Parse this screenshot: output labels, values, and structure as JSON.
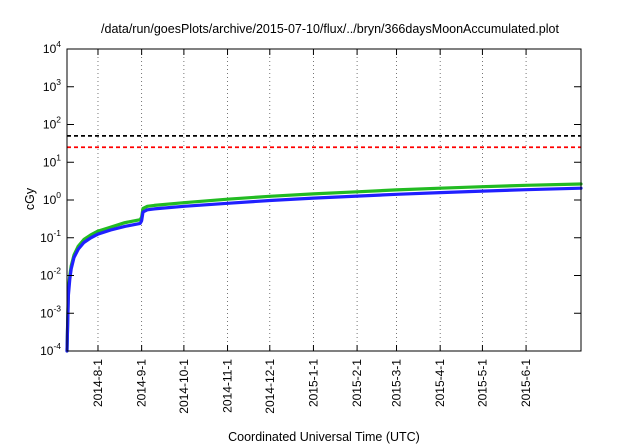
{
  "chart_data": {
    "type": "line",
    "title": "/data/run/goesPlots/archive/2015-07-10/flux/../bryn/366daysMoonAccumulated.plot",
    "xlabel": "Coordinated Universal Time (UTC)",
    "ylabel": "cGy",
    "x_range": [
      "2014-07-10",
      "2015-07-10"
    ],
    "y_range": [
      0.0001,
      10000
    ],
    "y_scale": "log",
    "x_ticks": [
      {
        "date": "2014-08-01",
        "label": "2014-8-1"
      },
      {
        "date": "2014-09-01",
        "label": "2014-9-1"
      },
      {
        "date": "2014-10-01",
        "label": "2014-10-1"
      },
      {
        "date": "2014-11-01",
        "label": "2014-11-1"
      },
      {
        "date": "2014-12-01",
        "label": "2014-12-1"
      },
      {
        "date": "2015-01-01",
        "label": "2015-1-1"
      },
      {
        "date": "2015-02-01",
        "label": "2015-2-1"
      },
      {
        "date": "2015-03-01",
        "label": "2015-3-1"
      },
      {
        "date": "2015-04-01",
        "label": "2015-4-1"
      },
      {
        "date": "2015-05-01",
        "label": "2015-5-1"
      },
      {
        "date": "2015-06-01",
        "label": "2015-6-1"
      }
    ],
    "y_ticks": [
      {
        "value": 0.0001,
        "base": "10",
        "exp": "-4"
      },
      {
        "value": 0.001,
        "base": "10",
        "exp": "-3"
      },
      {
        "value": 0.01,
        "base": "10",
        "exp": "-2"
      },
      {
        "value": 0.1,
        "base": "10",
        "exp": "-1"
      },
      {
        "value": 1,
        "base": "10",
        "exp": "0"
      },
      {
        "value": 10,
        "base": "10",
        "exp": "1"
      },
      {
        "value": 100,
        "base": "10",
        "exp": "2"
      },
      {
        "value": 1000,
        "base": "10",
        "exp": "3"
      },
      {
        "value": 10000,
        "base": "10",
        "exp": "4"
      }
    ],
    "grid": "vertical dotted at x ticks",
    "legend": "none",
    "reference_lines": [
      {
        "y": 50,
        "color": "#000000",
        "style": "dashed"
      },
      {
        "y": 25,
        "color": "#ff0000",
        "style": "dashed"
      }
    ],
    "series": [
      {
        "color": "#22bb22",
        "points": [
          {
            "x": "2014-07-10",
            "y": 0.0001
          },
          {
            "x": "2014-07-11",
            "y": 0.004
          },
          {
            "x": "2014-07-12",
            "y": 0.01
          },
          {
            "x": "2014-07-13",
            "y": 0.018
          },
          {
            "x": "2014-07-15",
            "y": 0.035
          },
          {
            "x": "2014-07-18",
            "y": 0.06
          },
          {
            "x": "2014-07-22",
            "y": 0.09
          },
          {
            "x": "2014-07-27",
            "y": 0.12
          },
          {
            "x": "2014-08-01",
            "y": 0.15
          },
          {
            "x": "2014-08-10",
            "y": 0.19
          },
          {
            "x": "2014-08-20",
            "y": 0.25
          },
          {
            "x": "2014-08-31",
            "y": 0.3
          },
          {
            "x": "2014-09-01",
            "y": 0.35
          },
          {
            "x": "2014-09-02",
            "y": 0.6
          },
          {
            "x": "2014-09-05",
            "y": 0.68
          },
          {
            "x": "2014-09-10",
            "y": 0.72
          },
          {
            "x": "2014-10-01",
            "y": 0.85
          },
          {
            "x": "2014-11-01",
            "y": 1.05
          },
          {
            "x": "2014-12-01",
            "y": 1.25
          },
          {
            "x": "2015-01-01",
            "y": 1.45
          },
          {
            "x": "2015-02-01",
            "y": 1.65
          },
          {
            "x": "2015-03-01",
            "y": 1.85
          },
          {
            "x": "2015-04-01",
            "y": 2.05
          },
          {
            "x": "2015-05-01",
            "y": 2.25
          },
          {
            "x": "2015-06-01",
            "y": 2.45
          },
          {
            "x": "2015-07-10",
            "y": 2.65
          }
        ]
      },
      {
        "color": "#2020ff",
        "points": [
          {
            "x": "2014-07-10",
            "y": 0.0001
          },
          {
            "x": "2014-07-11",
            "y": 0.003
          },
          {
            "x": "2014-07-12",
            "y": 0.008
          },
          {
            "x": "2014-07-13",
            "y": 0.015
          },
          {
            "x": "2014-07-15",
            "y": 0.03
          },
          {
            "x": "2014-07-18",
            "y": 0.05
          },
          {
            "x": "2014-07-22",
            "y": 0.075
          },
          {
            "x": "2014-07-27",
            "y": 0.1
          },
          {
            "x": "2014-08-01",
            "y": 0.125
          },
          {
            "x": "2014-08-10",
            "y": 0.16
          },
          {
            "x": "2014-08-20",
            "y": 0.2
          },
          {
            "x": "2014-08-31",
            "y": 0.24
          },
          {
            "x": "2014-09-01",
            "y": 0.28
          },
          {
            "x": "2014-09-02",
            "y": 0.48
          },
          {
            "x": "2014-09-05",
            "y": 0.55
          },
          {
            "x": "2014-09-10",
            "y": 0.58
          },
          {
            "x": "2014-10-01",
            "y": 0.68
          },
          {
            "x": "2014-11-01",
            "y": 0.82
          },
          {
            "x": "2014-12-01",
            "y": 0.97
          },
          {
            "x": "2015-01-01",
            "y": 1.12
          },
          {
            "x": "2015-02-01",
            "y": 1.27
          },
          {
            "x": "2015-03-01",
            "y": 1.42
          },
          {
            "x": "2015-04-01",
            "y": 1.57
          },
          {
            "x": "2015-05-01",
            "y": 1.72
          },
          {
            "x": "2015-06-01",
            "y": 1.87
          },
          {
            "x": "2015-07-10",
            "y": 2.05
          }
        ]
      }
    ]
  }
}
